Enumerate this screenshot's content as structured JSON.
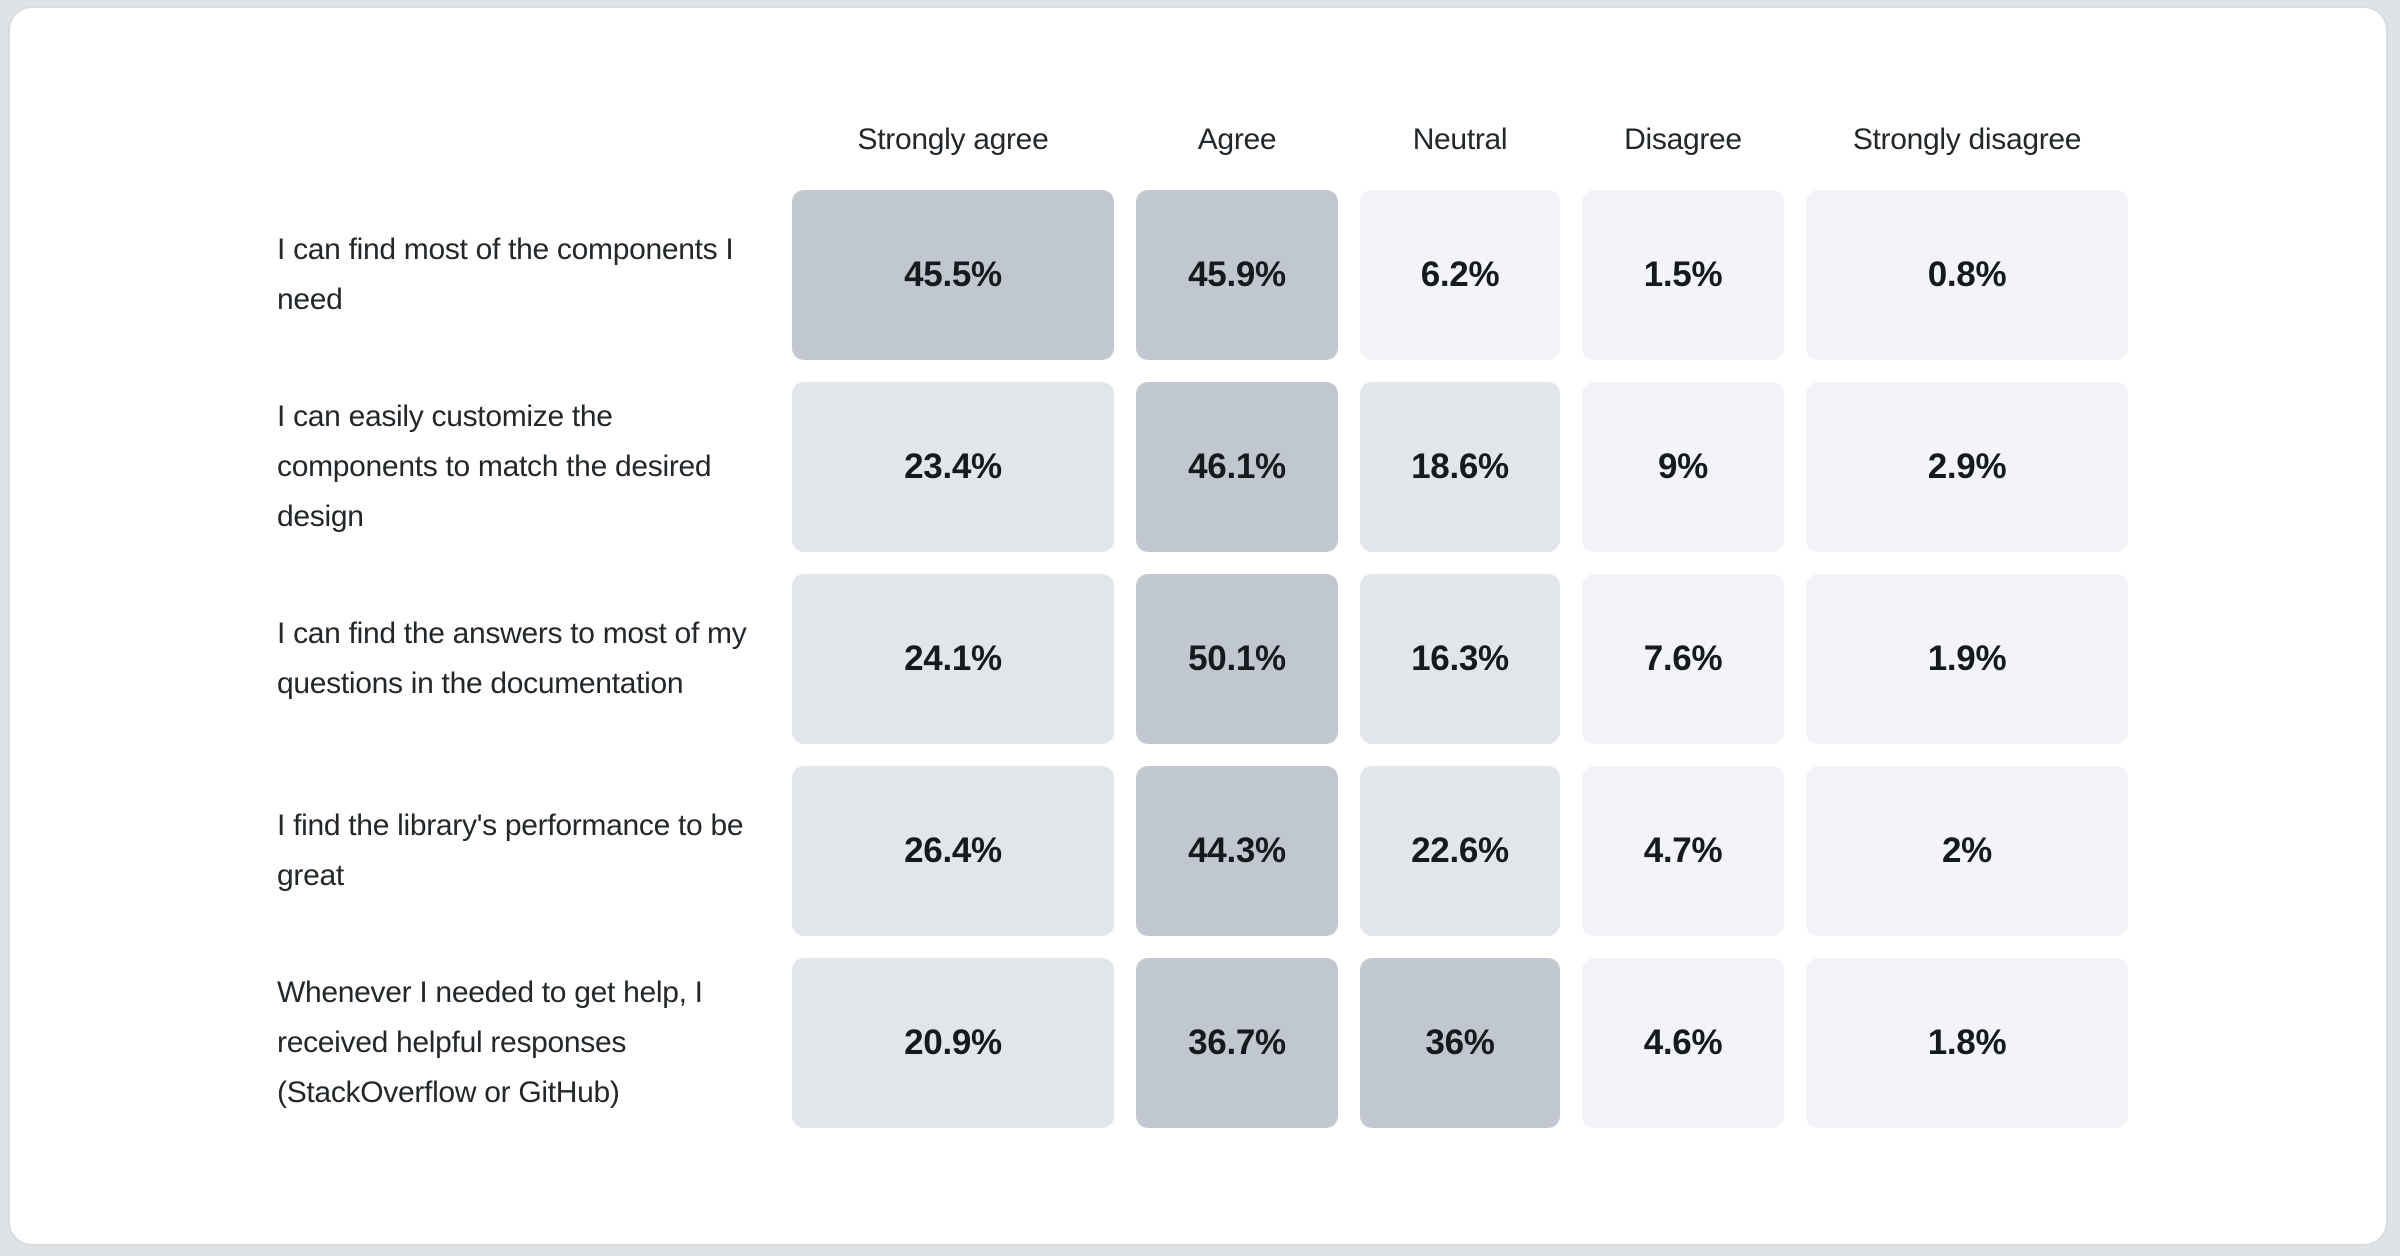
{
  "page": {
    "background": "#dfe3e6",
    "card_background": "#ffffff",
    "card_border": "#d8dcdf"
  },
  "chart_data": {
    "type": "heatmap",
    "title": "",
    "categories": [
      "Strongly agree",
      "Agree",
      "Neutral",
      "Disagree",
      "Strongly disagree"
    ],
    "rows": [
      {
        "label": "I can find most of the components I need",
        "values": [
          45.5,
          45.9,
          6.2,
          1.5,
          0.8
        ],
        "labels": [
          "45.5%",
          "45.9%",
          "6.2%",
          "1.5%",
          "0.8%"
        ]
      },
      {
        "label": "I can easily customize the components to match the desired design",
        "values": [
          23.4,
          46.1,
          18.6,
          9,
          2.9
        ],
        "labels": [
          "23.4%",
          "46.1%",
          "18.6%",
          "9%",
          "2.9%"
        ]
      },
      {
        "label": "I can find the answers to most of my questions in the documentation",
        "values": [
          24.1,
          50.1,
          16.3,
          7.6,
          1.9
        ],
        "labels": [
          "24.1%",
          "50.1%",
          "16.3%",
          "7.6%",
          "1.9%"
        ]
      },
      {
        "label": "I find the library's performance to be great",
        "values": [
          26.4,
          44.3,
          22.6,
          4.7,
          2
        ],
        "labels": [
          "26.4%",
          "44.3%",
          "22.6%",
          "4.7%",
          "2%"
        ]
      },
      {
        "label": "Whenever I needed to get help, I received helpful responses (StackOverflow or GitHub)",
        "values": [
          20.9,
          36.7,
          36,
          4.6,
          1.8
        ],
        "labels": [
          "20.9%",
          "36.7%",
          "36%",
          "4.6%",
          "1.8%"
        ]
      }
    ],
    "color_scale": {
      "light": "#f2f4f7",
      "medium": "#e2e6ea",
      "dark": "#c1c7ce",
      "medium_min": 15,
      "dark_min": 30
    },
    "header_text_color": "#21272a",
    "label_text_color": "#21272a",
    "value_text_color": "#16191d"
  }
}
